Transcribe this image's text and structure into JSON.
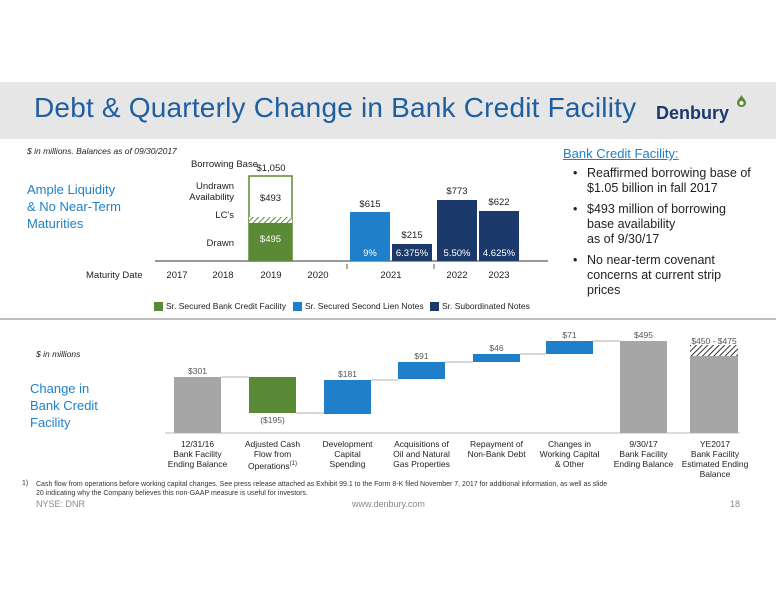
{
  "header": {
    "title": "Debt & Quarterly Change in Bank Credit Facility",
    "logo_text": "Denbury"
  },
  "debt_section": {
    "note": "$ in millions.  Balances as of 09/30/2017",
    "heading_line1": "Ample Liquidity",
    "heading_line2": "& No Near-Term",
    "heading_line3": "Maturities",
    "labels": {
      "borrowing_base": "Borrowing Base",
      "undrawn_1": "Undrawn",
      "undrawn_2": "Availability",
      "lcs": "LC's",
      "drawn": "Drawn",
      "maturity_date": "Maturity Date"
    }
  },
  "credit_facility": {
    "heading": "Bank Credit Facility:",
    "bullets": [
      {
        "line1": "Reaffirmed borrowing base of",
        "line2": "$1.05 billion in fall 2017"
      },
      {
        "line1": "$493 million of borrowing",
        "line2": "base availability",
        "line3": "as of 9/30/17"
      },
      {
        "line1": "No near-term covenant",
        "line2": "concerns at current strip",
        "line3": "prices"
      }
    ]
  },
  "change_section": {
    "note": "$ in millions",
    "heading_line1": "Change in",
    "heading_line2": "Bank Credit",
    "heading_line3": "Facility"
  },
  "chart_data": [
    {
      "type": "bar",
      "categories": [
        "2017",
        "2018",
        "2019",
        "2020",
        "2021",
        "2022",
        "2023"
      ],
      "series": [
        {
          "name": "Sr. Secured Bank Credit Facility",
          "color": "#5a8a35",
          "points": [
            {
              "year": "2019",
              "drawn": 495,
              "undrawn": 493,
              "total": 1050,
              "drawn_label": "$495",
              "undrawn_label": "$493",
              "total_label": "$1,050"
            }
          ]
        },
        {
          "name": "Sr. Secured Second Lien Notes",
          "color": "#1f7fc8",
          "points": [
            {
              "year": "2021",
              "value": 615,
              "value_label": "$615",
              "rate": "9%"
            },
            {
              "year": "2021",
              "value": 215,
              "value_label": "$215",
              "rate": "6.375%"
            }
          ]
        },
        {
          "name": "Sr. Subordinated Notes",
          "color": "#1b3a6b",
          "points": [
            {
              "year": "2021",
              "value": 215,
              "rate": "6.375%"
            },
            {
              "year": "2022",
              "value": 773,
              "value_label": "$773",
              "rate": "5.50%"
            },
            {
              "year": "2023",
              "value": 622,
              "value_label": "$622",
              "rate": "4.625%"
            }
          ]
        }
      ]
    },
    {
      "type": "bar",
      "waterfall": true,
      "steps": [
        {
          "label1": "12/31/16",
          "label2": "Bank Facility",
          "label3": "Ending Balance",
          "value": 301,
          "value_label": "$301",
          "kind": "total"
        },
        {
          "label1": "Adjusted Cash",
          "label2": "Flow from",
          "label3": "Operations",
          "sup": "(1)",
          "value": -195,
          "value_label": "($195)",
          "kind": "decrease"
        },
        {
          "label1": "Development",
          "label2": "Capital",
          "label3": "Spending",
          "value": 181,
          "value_label": "$181",
          "kind": "increase"
        },
        {
          "label1": "Acquisitions of",
          "label2": "Oil and Natural",
          "label3": "Gas Properties",
          "value": 91,
          "value_label": "$91",
          "kind": "increase"
        },
        {
          "label1": "Repayment of",
          "label2": "Non-Bank Debt",
          "label3": "",
          "value": 46,
          "value_label": "$46",
          "kind": "increase"
        },
        {
          "label1": "Changes in",
          "label2": "Working Capital",
          "label3": "& Other",
          "value": 71,
          "value_label": "$71",
          "kind": "increase"
        },
        {
          "label1": "9/30/17",
          "label2": "Bank Facility",
          "label3": "Ending Balance",
          "value": 495,
          "value_label": "$495",
          "kind": "total"
        },
        {
          "label1": "YE2017",
          "label2": "Bank Facility",
          "label3": "Estimated Ending",
          "label4": "Balance",
          "range": [
            450,
            475
          ],
          "value_label": "$450 - $475",
          "kind": "estimate"
        }
      ]
    }
  ],
  "footnote": {
    "number": "1)",
    "line1": "Cash flow from operations before working capital changes.  See press release attached as Exhibit 99.1 to the Form 8-K filed November 7, 2017 for additional information, as well as slide",
    "line2": "20 indicating why the Company believes this non-GAAP measure is useful for investors."
  },
  "footer": {
    "ticker": "NYSE: DNR",
    "website": "www.denbury.com",
    "page": "18"
  }
}
